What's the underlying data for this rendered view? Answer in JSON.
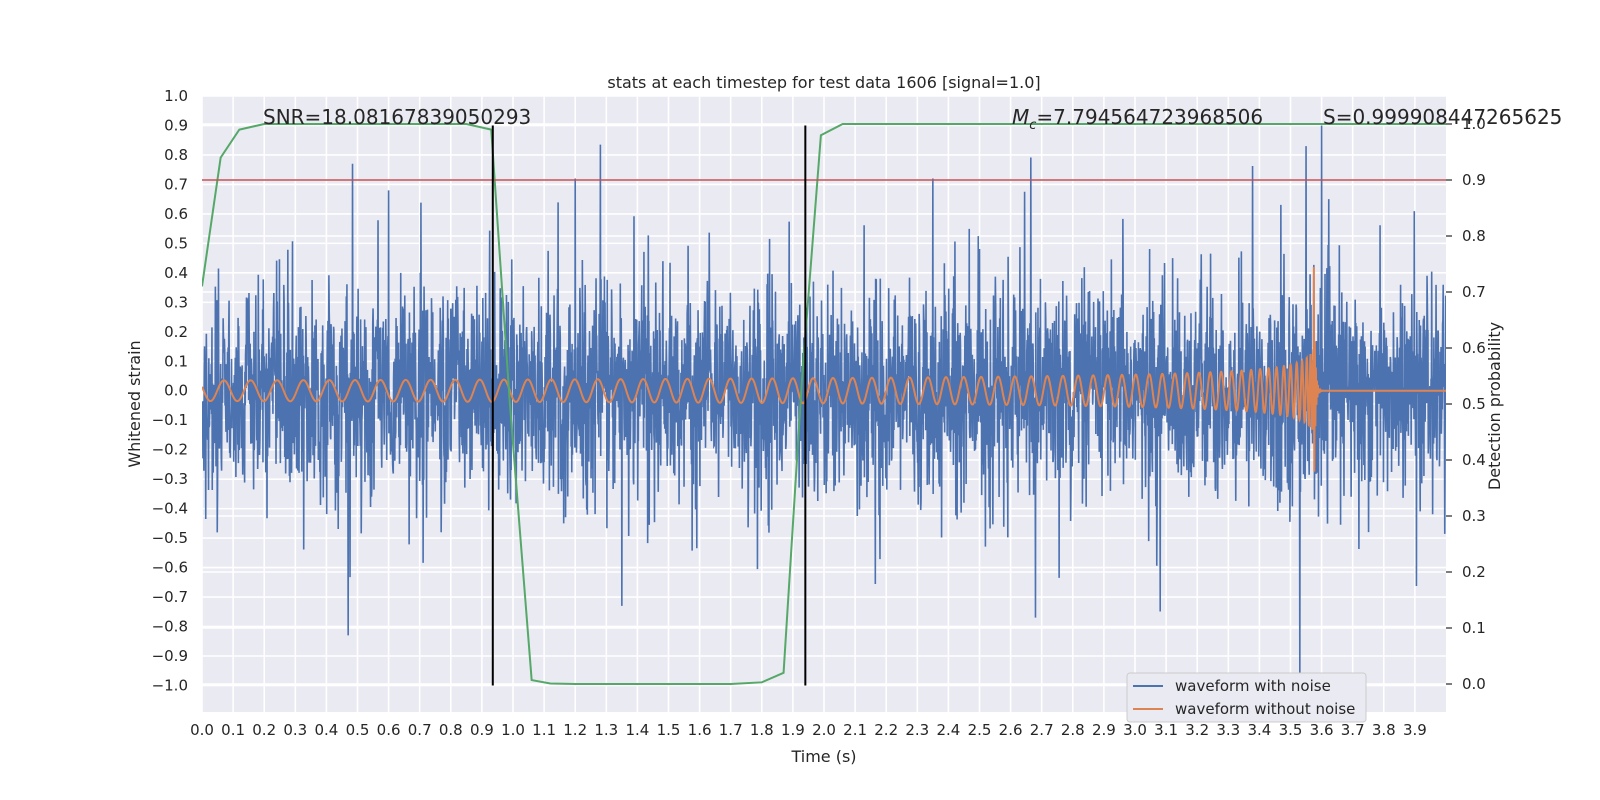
{
  "chart_data": {
    "type": "line",
    "title": "stats at each timestep for test data 1606 [signal=1.0]",
    "xlabel": "Time (s)",
    "ylabel": "Whitened strain",
    "ylabel_right": "Detection probability",
    "xlim": [
      0.0,
      4.0
    ],
    "ylim": [
      -1.09,
      1.0
    ],
    "ylim_right": [
      -0.05,
      1.05
    ],
    "x_ticks": [
      "0.0",
      "0.1",
      "0.2",
      "0.3",
      "0.4",
      "0.5",
      "0.6",
      "0.7",
      "0.8",
      "0.9",
      "1.0",
      "1.1",
      "1.2",
      "1.3",
      "1.4",
      "1.5",
      "1.6",
      "1.7",
      "1.8",
      "1.9",
      "2.0",
      "2.1",
      "2.2",
      "2.3",
      "2.4",
      "2.5",
      "2.6",
      "2.7",
      "2.8",
      "2.9",
      "3.0",
      "3.1",
      "3.2",
      "3.3",
      "3.4",
      "3.5",
      "3.6",
      "3.7",
      "3.8",
      "3.9"
    ],
    "y_ticks": [
      "1.0",
      "0.9",
      "0.8",
      "0.7",
      "0.6",
      "0.5",
      "0.4",
      "0.3",
      "0.2",
      "0.1",
      "0.0",
      "−0.1",
      "−0.2",
      "−0.3",
      "−0.4",
      "−0.5",
      "−0.6",
      "−0.7",
      "−0.8",
      "−0.9",
      "−1.0"
    ],
    "y_ticks_right": [
      "1.0",
      "0.9",
      "0.8",
      "0.7",
      "0.6",
      "0.5",
      "0.4",
      "0.3",
      "0.2",
      "0.1",
      "0.0"
    ],
    "grid": true,
    "legend_position": "bottom-right",
    "annotations": {
      "snr": "SNR=18.08167839050293",
      "mc_symbol": "M",
      "mc_subscript": "c",
      "mc_value": "=7.794564723968506",
      "s": "S=0.999908447265625"
    },
    "series": [
      {
        "name": "waveform with noise",
        "axis": "left",
        "color": "#4c72b0",
        "description_spikes": [
          [
            0.47,
            -0.83
          ],
          [
            0.6,
            0.68
          ],
          [
            1.2,
            0.72
          ],
          [
            1.35,
            -0.73
          ],
          [
            2.35,
            0.72
          ],
          [
            2.68,
            -0.77
          ],
          [
            3.53,
            -1.0
          ],
          [
            3.6,
            0.9
          ],
          [
            3.55,
            0.83
          ]
        ]
      },
      {
        "name": "waveform without noise",
        "axis": "left",
        "color": "#dd8452",
        "chirp": {
          "t_merger": 3.575,
          "f0": 11.5,
          "amp0": 0.035,
          "amp_peak": 0.42
        }
      },
      {
        "name": "detection probability",
        "axis": "right",
        "color": "#55a868",
        "x": [
          0.0,
          0.06,
          0.12,
          0.2,
          0.3,
          0.5,
          0.7,
          0.85,
          0.93,
          0.99,
          1.06,
          1.12,
          1.2,
          1.5,
          1.7,
          1.8,
          1.87,
          1.93,
          1.99,
          2.06,
          2.2,
          2.6,
          3.0,
          3.5,
          4.0
        ],
        "y": [
          0.71,
          0.94,
          0.99,
          1.0,
          1.0,
          1.0,
          1.0,
          1.0,
          0.99,
          0.5,
          0.007,
          0.001,
          0.0,
          0.0,
          0.0,
          0.003,
          0.02,
          0.55,
          0.98,
          1.0,
          1.0,
          1.0,
          1.0,
          1.0,
          1.0
        ]
      }
    ],
    "threshold_right": 0.9,
    "threshold_color": "#c44e52",
    "vlines_x": [
      0.935,
      1.94
    ],
    "vline_range_left": [
      -1.0,
      0.9
    ]
  }
}
